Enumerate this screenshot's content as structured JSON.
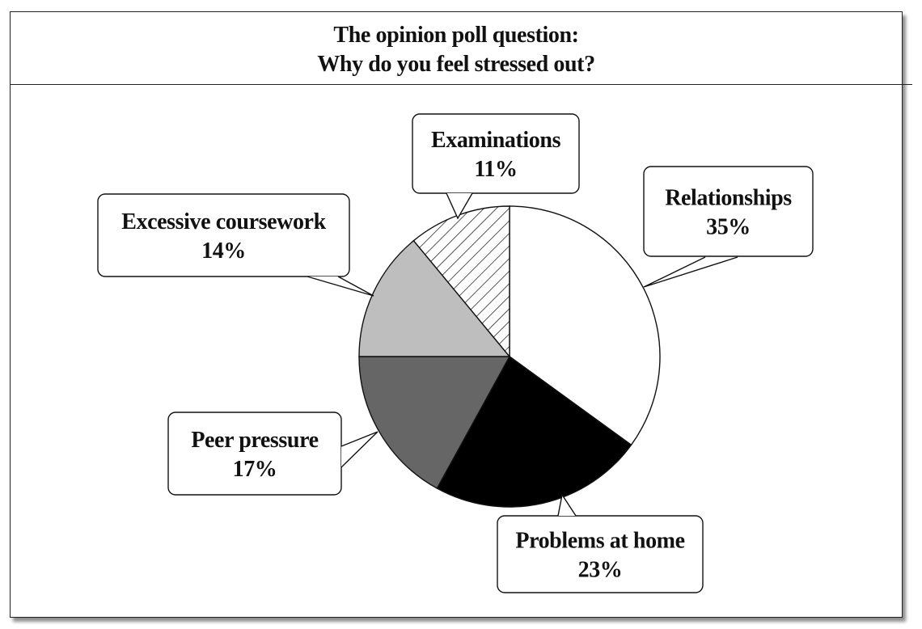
{
  "chart_data": {
    "type": "pie",
    "title_lines": [
      "The opinion poll question:",
      "Why do you feel stressed out?"
    ],
    "slices": [
      {
        "label": "Relationships",
        "value": 35,
        "value_text": "35%",
        "fill": "#ffffff",
        "pattern": "none"
      },
      {
        "label": "Problems at home",
        "value": 23,
        "value_text": "23%",
        "fill": "#000000",
        "pattern": "none"
      },
      {
        "label": "Peer pressure",
        "value": 17,
        "value_text": "17%",
        "fill": "#666666",
        "pattern": "none"
      },
      {
        "label": "Excessive coursework",
        "value": 14,
        "value_text": "14%",
        "fill": "#bebebe",
        "pattern": "none"
      },
      {
        "label": "Examinations",
        "value": 11,
        "value_text": "11%",
        "fill": "#ffffff",
        "pattern": "diagonal-hatch"
      }
    ],
    "start_angle": "12 o'clock",
    "direction": "clockwise",
    "legend": "callout boxes"
  }
}
